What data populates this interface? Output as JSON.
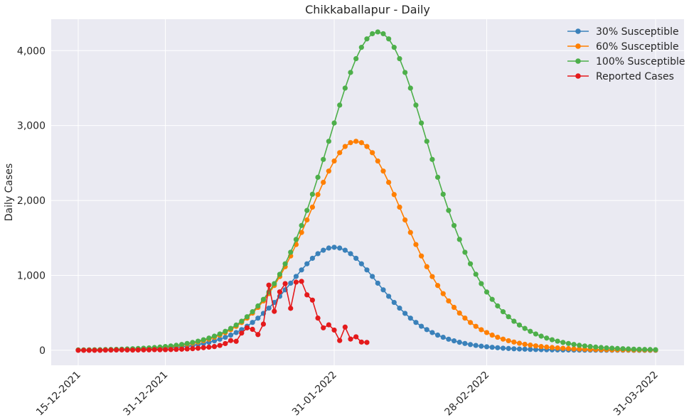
{
  "chart_data": {
    "type": "line",
    "title": "Chikkaballapur - Daily",
    "xlabel": "",
    "ylabel": "Daily Cases",
    "x_start_date": "15-12-2021",
    "x_end_date": "31-03-2022",
    "x_ticks": [
      "15-12-2021",
      "31-12-2021",
      "31-01-2022",
      "28-02-2022",
      "31-03-2022"
    ],
    "ylim": [
      -200,
      4420
    ],
    "y_ticks": [
      0,
      1000,
      2000,
      3000,
      4000
    ],
    "y_tick_labels": [
      "0",
      "1,000",
      "2,000",
      "3,000",
      "4,000"
    ],
    "grid": true,
    "legend_position": "top-right",
    "series": [
      {
        "name": "30% Susceptible",
        "color": "#3a81ba",
        "peak_date": "31-01-2022",
        "peak": 1375,
        "sigma": 11.8
      },
      {
        "name": "60% Susceptible",
        "color": "#ff7f00",
        "peak_date": "04-02-2022",
        "peak": 2790,
        "sigma": 12.6
      },
      {
        "name": "100% Susceptible",
        "color": "#4daf4a",
        "peak_date": "08-02-2022",
        "peak": 4250,
        "sigma": 13.4
      },
      {
        "name": "Reported Cases",
        "color": "#e41a1c",
        "values": [
          0,
          0,
          0,
          0,
          0,
          2,
          3,
          4,
          5,
          4,
          3,
          4,
          5,
          6,
          8,
          7,
          8,
          10,
          12,
          15,
          18,
          22,
          28,
          35,
          42,
          50,
          65,
          90,
          130,
          120,
          230,
          300,
          280,
          210,
          350,
          870,
          520,
          780,
          890,
          560,
          910,
          920,
          740,
          670,
          430,
          300,
          340,
          270,
          130,
          310,
          150,
          180,
          110,
          105
        ]
      }
    ]
  }
}
